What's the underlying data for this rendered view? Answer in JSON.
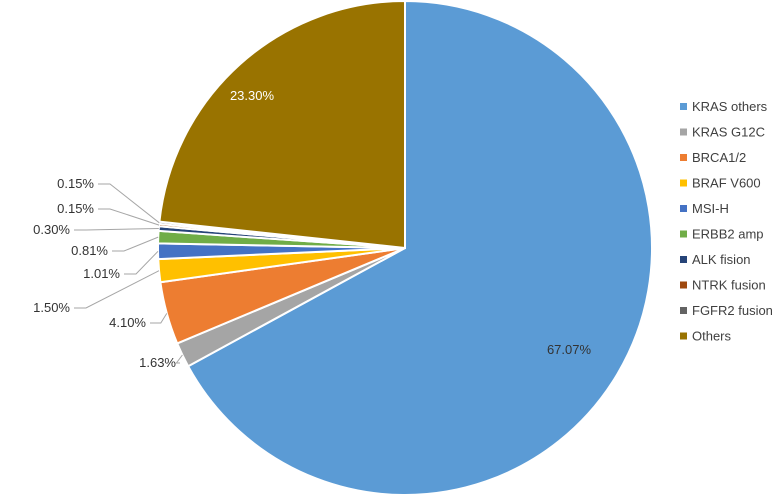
{
  "chart_data": {
    "type": "pie",
    "title": "",
    "legend_position": "right",
    "slices": [
      {
        "name": "KRAS others",
        "value": 67.07,
        "label": "67.07%",
        "color": "#5B9BD5"
      },
      {
        "name": "KRAS G12C",
        "value": 1.63,
        "label": "1.63%",
        "color": "#A5A5A5"
      },
      {
        "name": "BRCA1/2",
        "value": 4.1,
        "label": "4.10%",
        "color": "#ED7D31"
      },
      {
        "name": "BRAF V600",
        "value": 1.5,
        "label": "1.50%",
        "color": "#FFC000"
      },
      {
        "name": "MSI-H",
        "value": 1.01,
        "label": "1.01%",
        "color": "#4472C4"
      },
      {
        "name": "ERBB2 amp",
        "value": 0.81,
        "label": "0.81%",
        "color": "#70AD47"
      },
      {
        "name": "ALK fision",
        "value": 0.3,
        "label": "0.30%",
        "color": "#264478"
      },
      {
        "name": "NTRK fusion",
        "value": 0.15,
        "label": "0.15%",
        "color": "#9E480E"
      },
      {
        "name": "FGFR2 fusion",
        "value": 0.15,
        "label": "0.15%",
        "color": "#636363"
      },
      {
        "name": "Others",
        "value": 23.3,
        "label": "23.30%",
        "color": "#997300"
      }
    ]
  }
}
